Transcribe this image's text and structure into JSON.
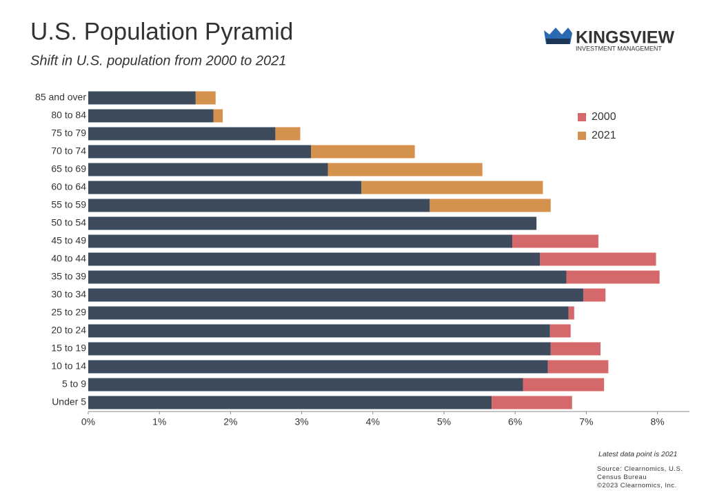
{
  "chart_data": {
    "type": "overlap-hbar",
    "title": "U.S. Population Pyramid",
    "subtitle": "Shift in U.S. population from 2000 to 2021",
    "categories": [
      "85 and over",
      "80 to 84",
      "75 to 79",
      "70 to 74",
      "65 to 69",
      "60 to 64",
      "55 to 59",
      "50 to 54",
      "45 to 49",
      "40 to 44",
      "35 to 39",
      "30 to 34",
      "25 to 29",
      "20 to 24",
      "15 to 19",
      "10 to 14",
      "5 to 9",
      "Under 5"
    ],
    "series": [
      {
        "name": "2000",
        "color": "#d4686a",
        "values": [
          1.51,
          1.76,
          2.63,
          3.13,
          3.37,
          3.84,
          4.8,
          6.3,
          7.17,
          7.98,
          8.03,
          7.27,
          6.83,
          6.78,
          7.2,
          7.31,
          7.25,
          6.8
        ]
      },
      {
        "name": "2021",
        "color": "#d4924e",
        "values": [
          1.79,
          1.89,
          2.98,
          4.59,
          5.54,
          6.39,
          6.5,
          6.3,
          5.96,
          6.35,
          6.72,
          6.96,
          6.75,
          6.49,
          6.5,
          6.46,
          6.11,
          5.67
        ]
      }
    ],
    "overlap_color": "#3d4b5c",
    "xlim": [
      0,
      8.45
    ],
    "xticks": [
      {
        "value": 0,
        "label": "0%"
      },
      {
        "value": 1,
        "label": "1%"
      },
      {
        "value": 2,
        "label": "2%"
      },
      {
        "value": 3,
        "label": "3%"
      },
      {
        "value": 4,
        "label": "4%"
      },
      {
        "value": 5,
        "label": "5%"
      },
      {
        "value": 6,
        "label": "6%"
      },
      {
        "value": 7,
        "label": "7%"
      },
      {
        "value": 8,
        "label": "8%"
      }
    ],
    "legend": "upper right"
  },
  "logo": {
    "name": "KINGSVIEW",
    "tagline": "INVESTMENT MANAGEMENT"
  },
  "footer": {
    "note": "Latest data point is 2021",
    "source": "Source: Clearnomics, U.S. Census Bureau",
    "copyright": "©2023 Clearnomics, Inc."
  }
}
